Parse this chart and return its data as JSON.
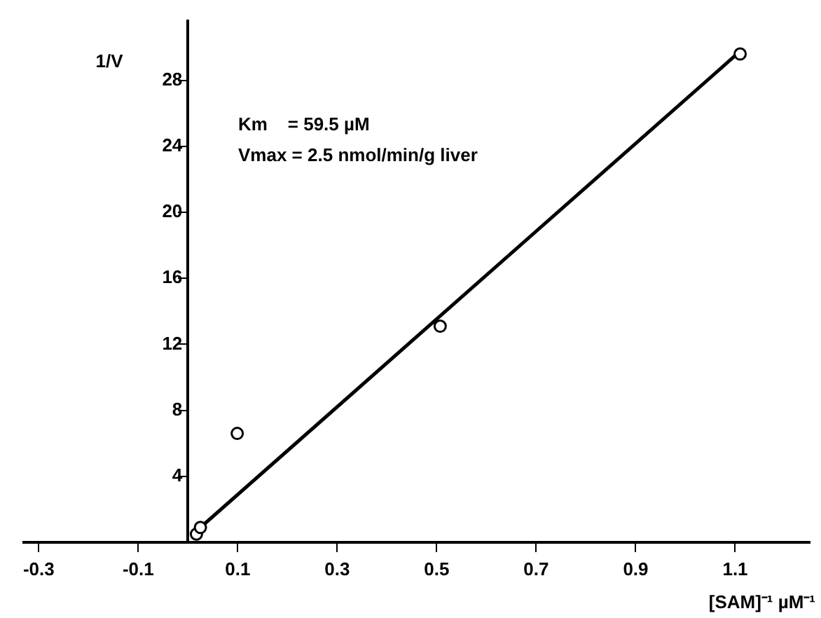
{
  "chart_data": {
    "type": "scatter",
    "xlabel": "[SAM]⁻¹ µM⁻¹",
    "ylabel": "1/V",
    "annotations": [
      "Km    = 59.5 µM",
      "Vmax = 2.5 nmol/min/g liver"
    ],
    "xlim": [
      -0.33,
      1.25
    ],
    "ylim": [
      0,
      31.6
    ],
    "xticks": [
      -0.3,
      -0.1,
      0.1,
      0.3,
      0.5,
      0.7,
      0.9,
      1.1
    ],
    "yticks": [
      4,
      8,
      12,
      16,
      20,
      24,
      28
    ],
    "grid": false,
    "marker": "circle",
    "series": [
      {
        "type": "scatter",
        "color": "#000000",
        "x": [
          0.017,
          0.025,
          0.099,
          0.507,
          1.11
        ],
        "values": [
          0.5,
          0.9,
          6.6,
          13.1,
          29.6
        ]
      },
      {
        "type": "line",
        "color": "#000000",
        "marker": "none",
        "x": [
          0.01,
          1.1
        ],
        "values": [
          0.5,
          29.5
        ]
      }
    ]
  }
}
